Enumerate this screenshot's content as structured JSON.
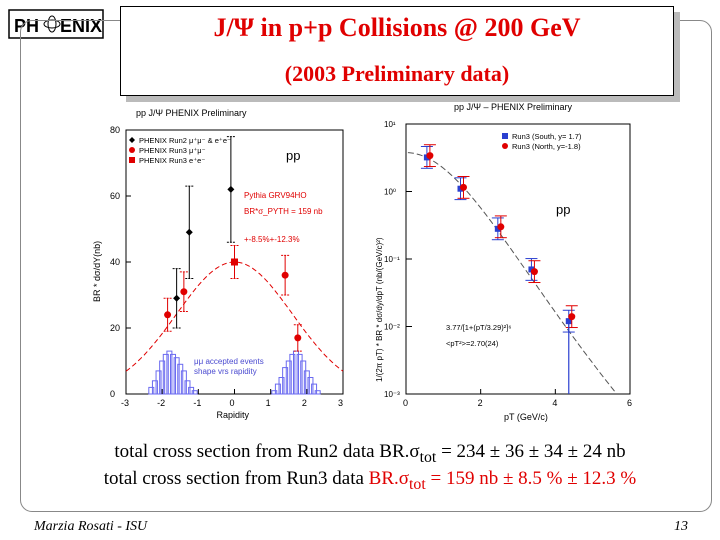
{
  "logo": {
    "text_left": "PH",
    "text_right": "ENIX"
  },
  "slide": {
    "title_prefix": "J/",
    "title_psi": "Ψ",
    "title_rest": "  in p+p Collisions @ 200 GeV",
    "subtitle": "(2003 Preliminary data)"
  },
  "body": {
    "line1_prefix": "total cross section from Run2 data BR.σ",
    "line1_sub": "tot",
    "line1_suffix": " = 234 ± 36 ± 34 ± 24 nb",
    "line2_prefix": "total cross section from Run3 data ",
    "line2_red": "BR.σ",
    "line2_sub": "tot",
    "line2_red_suffix": " = 159 nb ± 8.5 % ± 12.3 %"
  },
  "footer": {
    "author": "Marzia Rosati -  ISU",
    "page": "13"
  },
  "colors": {
    "red": "#e00000",
    "blue": "#2a3fd0",
    "black": "#000000"
  },
  "chart_data": [
    {
      "type": "scatter",
      "title": "pp  J/Ψ   PHENIX Preliminary",
      "xlabel": "Rapidity",
      "ylabel": "BR * dσ/dY(nb)",
      "xlim": [
        -3,
        3
      ],
      "ylim": [
        0,
        80
      ],
      "xticks": [
        "-3",
        "-2",
        "-1",
        "0",
        "1",
        "2",
        "3"
      ],
      "yticks": [
        "0",
        "20",
        "40",
        "60",
        "80"
      ],
      "legend": [
        "PHENIX Run2 μ⁺μ⁻ & e⁺e⁻",
        "PHENIX Run3 μ⁺μ⁻",
        "PHENIX Run3 e⁺e⁻"
      ],
      "annotations": [
        "pp",
        "Pythia GRV94HO",
        "BR*σ_PYTH = 159 nb",
        "+-8.5%+-12.3%",
        "μμ accepted events",
        "shape vrs rapidity"
      ],
      "series": [
        {
          "name": "PHENIX Run2 μ⁺μ⁻ & e⁺e⁻",
          "marker": "diamond",
          "color": "#000000",
          "x": [
            -1.6,
            -1.25,
            -0.1
          ],
          "y": [
            29,
            49,
            62
          ],
          "err": [
            9,
            14,
            16
          ]
        },
        {
          "name": "PHENIX Run3 μ⁺μ⁻",
          "marker": "circle",
          "color": "#e00000",
          "x": [
            -1.85,
            -1.4,
            1.4,
            1.75
          ],
          "y": [
            24,
            31,
            36,
            17
          ],
          "err": [
            5,
            6,
            6,
            4
          ]
        },
        {
          "name": "PHENIX Run3 e⁺e⁻",
          "marker": "square",
          "color": "#e00000",
          "x": [
            0
          ],
          "y": [
            40
          ],
          "err": [
            5
          ]
        }
      ],
      "histogram": {
        "color": "#6a6af0",
        "x": [
          -2.3,
          -2.2,
          -2.1,
          -2.0,
          -1.9,
          -1.8,
          -1.7,
          -1.6,
          -1.5,
          -1.4,
          -1.3,
          -1.2,
          -1.1,
          1.1,
          1.2,
          1.3,
          1.4,
          1.5,
          1.6,
          1.7,
          1.8,
          1.9,
          2.0,
          2.1,
          2.2,
          2.3
        ],
        "y": [
          2,
          4,
          7,
          10,
          12,
          13,
          12,
          11,
          9,
          7,
          4,
          2,
          1,
          1,
          3,
          5,
          8,
          10,
          12,
          13,
          12,
          10,
          7,
          5,
          3,
          1
        ]
      },
      "curve": {
        "type": "gaussian",
        "amplitude": 40,
        "sigma": 1.6,
        "color": "#e00000"
      }
    },
    {
      "type": "scatter",
      "title": "pp J/Ψ – PHENIX Preliminary",
      "xlabel": "pT (GeV/c)",
      "ylabel": "1/(2π pT) * BR * dσ/dy/dpT (nb/(GeV/c)²)",
      "xlim": [
        0,
        6
      ],
      "log_y": true,
      "ylim": [
        0.001,
        10
      ],
      "xticks": [
        "0",
        "2",
        "4",
        "6"
      ],
      "yticks": [
        "10¹",
        "10⁰",
        "10⁻¹",
        "10⁻²",
        "10⁻³"
      ],
      "legend": [
        "Run3 (South, y= 1.7)",
        "Run3 (North, y=-1.8)"
      ],
      "annotations": [
        "pp",
        "3.77/[1+(pT/3.29)²]⁶",
        "<pT²>=2.70(24)"
      ],
      "series": [
        {
          "name": "Run3 (South, y= 1.7)",
          "color": "#2a3fd0",
          "x": [
            0.6,
            1.5,
            2.5,
            3.4,
            4.4
          ],
          "y": [
            3.2,
            1.1,
            0.28,
            0.07,
            0.012
          ]
        },
        {
          "name": "Run3 (North, y=-1.8)",
          "color": "#e00000",
          "x": [
            0.6,
            1.5,
            2.5,
            3.4,
            4.4
          ],
          "y": [
            3.4,
            1.15,
            0.3,
            0.065,
            0.014
          ]
        }
      ],
      "curve": {
        "type": "power-law",
        "a": 3.77,
        "p0": 3.29,
        "n": 6,
        "color": "#555555"
      }
    }
  ]
}
